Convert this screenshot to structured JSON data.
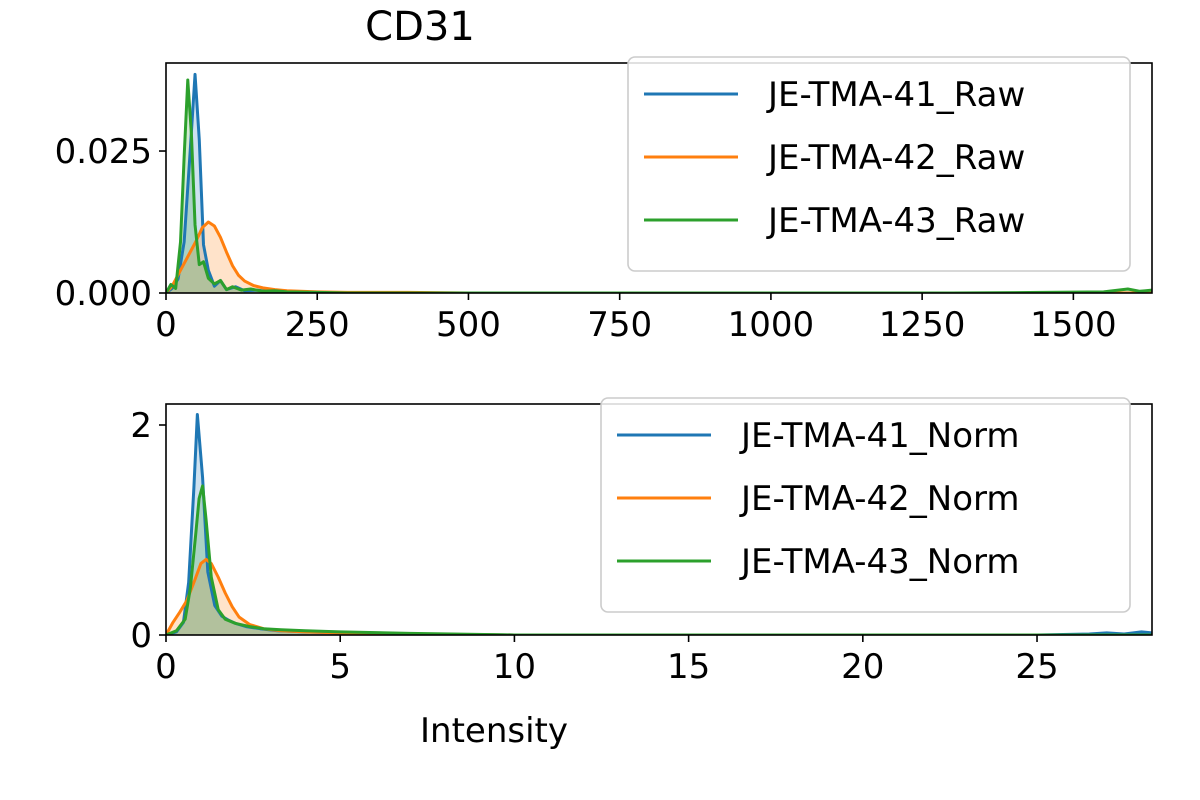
{
  "figure": {
    "title": "CD31"
  },
  "chart_data": [
    {
      "type": "area",
      "title": "CD31",
      "xlabel": "",
      "ylabel": "",
      "xlim": [
        0,
        1630
      ],
      "ylim": [
        0,
        0.0405
      ],
      "xticks": [
        0,
        250,
        500,
        750,
        1000,
        1250,
        1500
      ],
      "xtick_labels": [
        "0",
        "250",
        "500",
        "750",
        "1000",
        "1250",
        "1500"
      ],
      "yticks": [
        0,
        0.025
      ],
      "ytick_labels": [
        "0.000",
        "0.025"
      ],
      "grid": false,
      "legend_position": "top-right",
      "series": [
        {
          "name": "JE-TMA-41_Raw",
          "color": "#1f77b4",
          "x": [
            0,
            10,
            20,
            30,
            40,
            48,
            55,
            62,
            70,
            80,
            90,
            100,
            115,
            130,
            150,
            175,
            200,
            250,
            300,
            400,
            500,
            700,
            1000,
            1300,
            1630
          ],
          "y": [
            0.0,
            0.0008,
            0.0025,
            0.009,
            0.025,
            0.0385,
            0.027,
            0.0085,
            0.004,
            0.0012,
            0.0022,
            0.0006,
            0.0011,
            0.0004,
            0.0005,
            0.0002,
            0.0001,
            0.0,
            0.0,
            0.0,
            0.0,
            0.0,
            0.0,
            0.0,
            0.0
          ]
        },
        {
          "name": "JE-TMA-42_Raw",
          "color": "#ff7f0e",
          "x": [
            0,
            10,
            20,
            30,
            40,
            50,
            60,
            70,
            80,
            90,
            100,
            110,
            120,
            130,
            145,
            160,
            180,
            200,
            250,
            300,
            400,
            500,
            700,
            1000,
            1300,
            1630
          ],
          "y": [
            0.0,
            0.0012,
            0.0032,
            0.0052,
            0.0072,
            0.0092,
            0.0115,
            0.0125,
            0.0118,
            0.0098,
            0.0072,
            0.0048,
            0.0031,
            0.0021,
            0.0013,
            0.0009,
            0.0006,
            0.0004,
            0.0002,
            0.0001,
            0.0001,
            0.0,
            0.0,
            0.0,
            0.0,
            0.0
          ]
        },
        {
          "name": "JE-TMA-43_Raw",
          "color": "#2ca02c",
          "x": [
            0,
            8,
            16,
            24,
            30,
            36,
            42,
            48,
            55,
            62,
            70,
            80,
            90,
            100,
            110,
            125,
            140,
            160,
            180,
            200,
            250,
            300,
            400,
            500,
            700,
            900,
            1100,
            1300,
            1450,
            1550,
            1590,
            1610,
            1630
          ],
          "y": [
            0.0,
            0.0015,
            0.0008,
            0.009,
            0.024,
            0.0375,
            0.028,
            0.012,
            0.005,
            0.0055,
            0.0026,
            0.0016,
            0.0022,
            0.0006,
            0.0011,
            0.0005,
            0.0007,
            0.0003,
            0.0004,
            0.0002,
            0.0001,
            0.0,
            0.0,
            0.0,
            0.0,
            0.0,
            0.0,
            0.0,
            0.0001,
            0.0002,
            0.0007,
            0.0003,
            0.0005
          ]
        }
      ]
    },
    {
      "type": "area",
      "title": "",
      "xlabel": "Intensity",
      "ylabel": "",
      "xlim": [
        0,
        28.3
      ],
      "ylim": [
        0,
        2.2
      ],
      "xticks": [
        0,
        5,
        10,
        15,
        20,
        25
      ],
      "xtick_labels": [
        "0",
        "5",
        "10",
        "15",
        "20",
        "25"
      ],
      "yticks": [
        0,
        2
      ],
      "ytick_labels": [
        "0",
        "2"
      ],
      "grid": false,
      "legend_position": "top-right",
      "series": [
        {
          "name": "JE-TMA-41_Norm",
          "color": "#1f77b4",
          "x": [
            0,
            0.3,
            0.5,
            0.65,
            0.8,
            0.9,
            1.05,
            1.2,
            1.4,
            1.6,
            1.8,
            2.0,
            2.3,
            2.7,
            3.2,
            4,
            5,
            7,
            10,
            15,
            20,
            25,
            26.5,
            27,
            27.5,
            28,
            28.3
          ],
          "y": [
            0.0,
            0.03,
            0.12,
            0.5,
            1.4,
            2.1,
            1.5,
            0.6,
            0.28,
            0.18,
            0.14,
            0.11,
            0.08,
            0.06,
            0.04,
            0.03,
            0.02,
            0.01,
            0.0,
            0.0,
            0.0,
            0.0,
            0.01,
            0.02,
            0.01,
            0.03,
            0.02
          ]
        },
        {
          "name": "JE-TMA-42_Norm",
          "color": "#ff7f0e",
          "x": [
            0,
            0.2,
            0.4,
            0.6,
            0.8,
            1.0,
            1.15,
            1.3,
            1.5,
            1.7,
            1.9,
            2.1,
            2.4,
            2.8,
            3.3,
            4,
            5,
            7,
            10,
            15,
            20,
            28.3
          ],
          "y": [
            0.0,
            0.12,
            0.22,
            0.33,
            0.5,
            0.68,
            0.72,
            0.68,
            0.55,
            0.4,
            0.27,
            0.17,
            0.1,
            0.06,
            0.04,
            0.03,
            0.02,
            0.01,
            0.0,
            0.0,
            0.0,
            0.0
          ]
        },
        {
          "name": "JE-TMA-43_Norm",
          "color": "#2ca02c",
          "x": [
            0,
            0.3,
            0.55,
            0.7,
            0.85,
            0.95,
            1.05,
            1.15,
            1.3,
            1.5,
            1.7,
            2.0,
            2.4,
            2.8,
            3.3,
            4,
            5,
            7,
            10,
            15,
            20,
            28.3
          ],
          "y": [
            0.0,
            0.04,
            0.15,
            0.45,
            0.95,
            1.3,
            1.42,
            1.1,
            0.55,
            0.24,
            0.15,
            0.11,
            0.08,
            0.06,
            0.05,
            0.04,
            0.03,
            0.015,
            0.0,
            0.0,
            0.0,
            0.0
          ]
        }
      ]
    }
  ]
}
